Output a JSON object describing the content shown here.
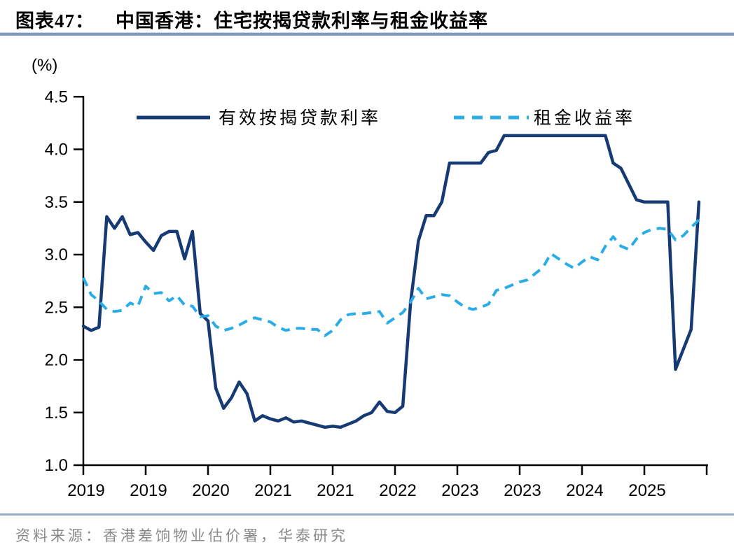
{
  "figure": {
    "label": "图表47：",
    "title": "中国香港：住宅按揭贷款利率与租金收益率"
  },
  "source": {
    "text": "资料来源：香港差饷物业估价署，华泰研究"
  },
  "colors": {
    "mortgage_line": "#163b74",
    "rental_line": "#2aade6",
    "title_rule": "#8098be",
    "source_rule": "#96abc9",
    "axis": "#000000",
    "source_text": "#8a8a8a"
  },
  "chart_data": {
    "type": "line",
    "unit_label": "(%)",
    "x_axis": {
      "start": "2019-01",
      "end": "2025-08",
      "frequency": "monthly",
      "tick_interval_months": 8,
      "tick_labels": [
        "2019",
        "2019",
        "2020",
        "2021",
        "2021",
        "2022",
        "2023",
        "2023",
        "2024",
        "2025"
      ]
    },
    "y_axis": {
      "min": 1.0,
      "max": 4.5,
      "step": 0.5,
      "tick_labels": [
        "1.0",
        "1.5",
        "2.0",
        "2.5",
        "3.0",
        "3.5",
        "4.0",
        "4.5"
      ]
    },
    "grid": false,
    "legend_position": "top-inside",
    "series": [
      {
        "id": "mortgage-rate-line",
        "name": "有效按揭贷款利率",
        "style": "solid",
        "color": "#163b74",
        "values": [
          2.32,
          2.28,
          2.31,
          3.36,
          3.25,
          3.36,
          3.19,
          3.21,
          3.12,
          3.04,
          3.18,
          3.22,
          3.22,
          2.96,
          3.22,
          2.44,
          2.37,
          1.73,
          1.54,
          1.64,
          1.79,
          1.68,
          1.42,
          1.47,
          1.44,
          1.42,
          1.45,
          1.41,
          1.42,
          1.4,
          1.38,
          1.36,
          1.37,
          1.36,
          1.39,
          1.42,
          1.47,
          1.5,
          1.6,
          1.51,
          1.5,
          1.56,
          2.55,
          3.13,
          3.37,
          3.37,
          3.5,
          3.87,
          3.87,
          3.87,
          3.87,
          3.87,
          3.97,
          3.99,
          4.13,
          4.13,
          4.13,
          4.13,
          4.13,
          4.13,
          4.13,
          4.13,
          4.13,
          4.13,
          4.13,
          4.13,
          4.13,
          4.13,
          3.87,
          3.82,
          3.67,
          3.52,
          3.5,
          3.5,
          3.5,
          3.5,
          1.91,
          2.1,
          2.29,
          3.5
        ]
      },
      {
        "id": "rental-yield-line",
        "name": "租金收益率",
        "style": "dashed",
        "color": "#2aade6",
        "values": [
          2.78,
          2.62,
          2.56,
          2.48,
          2.46,
          2.47,
          2.54,
          2.51,
          2.7,
          2.63,
          2.64,
          2.56,
          2.61,
          2.52,
          2.51,
          2.41,
          2.42,
          2.32,
          2.28,
          2.3,
          2.33,
          2.37,
          2.4,
          2.38,
          2.36,
          2.31,
          2.28,
          2.3,
          2.3,
          2.29,
          2.29,
          2.23,
          2.28,
          2.38,
          2.43,
          2.44,
          2.44,
          2.45,
          2.46,
          2.35,
          2.4,
          2.45,
          2.55,
          2.68,
          2.58,
          2.6,
          2.62,
          2.61,
          2.55,
          2.5,
          2.48,
          2.5,
          2.53,
          2.66,
          2.68,
          2.71,
          2.74,
          2.76,
          2.82,
          2.88,
          3.01,
          2.96,
          2.91,
          2.87,
          2.93,
          2.98,
          2.95,
          3.08,
          3.17,
          3.08,
          3.05,
          3.15,
          3.21,
          3.24,
          3.25,
          3.24,
          3.14,
          3.18,
          3.26,
          3.33
        ]
      }
    ]
  }
}
